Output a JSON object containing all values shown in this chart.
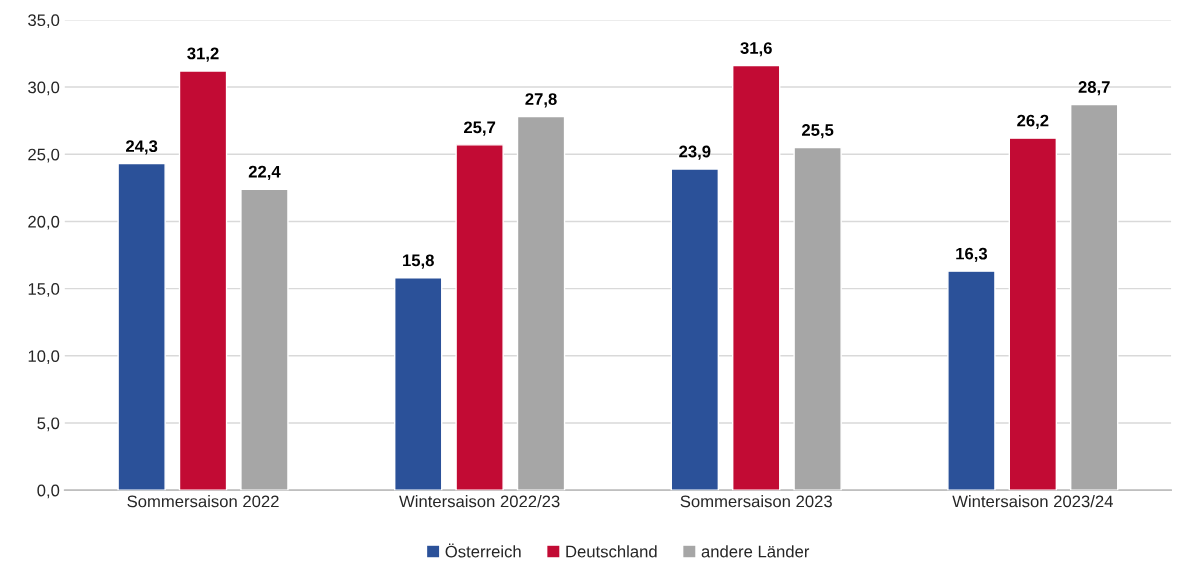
{
  "chart_data": {
    "type": "bar",
    "categories": [
      "Sommersaison 2022",
      "Wintersaison 2022/23",
      "Sommersaison 2023",
      "Wintersaison 2023/24"
    ],
    "series": [
      {
        "name": "Österreich",
        "color": "#2b5199",
        "values": [
          24.3,
          15.8,
          23.9,
          16.3
        ],
        "value_labels": [
          "24,3",
          "15,8",
          "23,9",
          "16,3"
        ]
      },
      {
        "name": "Deutschland",
        "color": "#c20b34",
        "values": [
          31.2,
          25.7,
          31.6,
          26.2
        ],
        "value_labels": [
          "31,2",
          "25,7",
          "31,6",
          "26,2"
        ]
      },
      {
        "name": "andere Länder",
        "color": "#a6a6a6",
        "values": [
          22.4,
          27.8,
          25.5,
          28.7
        ],
        "value_labels": [
          "22,4",
          "27,8",
          "25,5",
          "28,7"
        ]
      }
    ],
    "ylim": [
      0,
      35
    ],
    "yticks": [
      {
        "value": 0,
        "label": "0,0"
      },
      {
        "value": 5,
        "label": "5,0"
      },
      {
        "value": 10,
        "label": "10,0"
      },
      {
        "value": 15,
        "label": "15,0"
      },
      {
        "value": 20,
        "label": "20,0"
      },
      {
        "value": 25,
        "label": "25,0"
      },
      {
        "value": 30,
        "label": "30,0"
      },
      {
        "value": 35,
        "label": "35,0"
      }
    ],
    "grid": "y",
    "legend": "bottom"
  }
}
